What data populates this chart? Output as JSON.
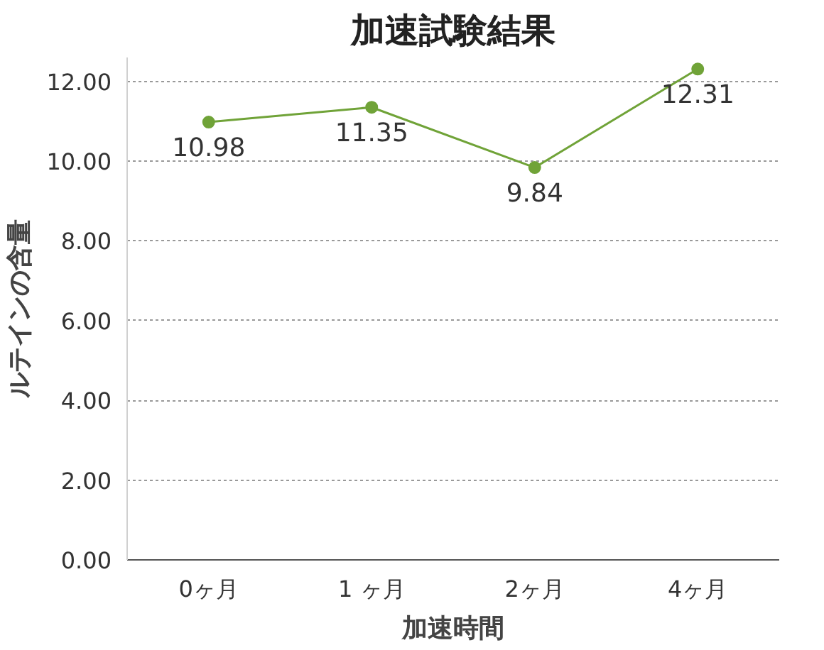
{
  "chart_data": {
    "type": "line",
    "title": "加速試験結果",
    "xlabel": "加速時間",
    "ylabel": "ルテインの含量",
    "categories": [
      "0ヶ月",
      "1 ヶ月",
      "2ヶ月",
      "4ヶ月"
    ],
    "series": [
      {
        "color": "#70a338",
        "values": [
          10.98,
          11.35,
          9.84,
          12.31
        ]
      }
    ],
    "ylim": [
      0,
      12.6
    ],
    "yticks": [
      {
        "value": 0,
        "label": "0.00"
      },
      {
        "value": 2,
        "label": "2.00"
      },
      {
        "value": 4,
        "label": "4.00"
      },
      {
        "value": 6,
        "label": "6.00"
      },
      {
        "value": 8,
        "label": "8.00"
      },
      {
        "value": 10,
        "label": "10.00"
      },
      {
        "value": 12,
        "label": "12.00"
      }
    ],
    "grid": "y",
    "marker": "circle",
    "line_style": "solid",
    "data_labels": true
  }
}
